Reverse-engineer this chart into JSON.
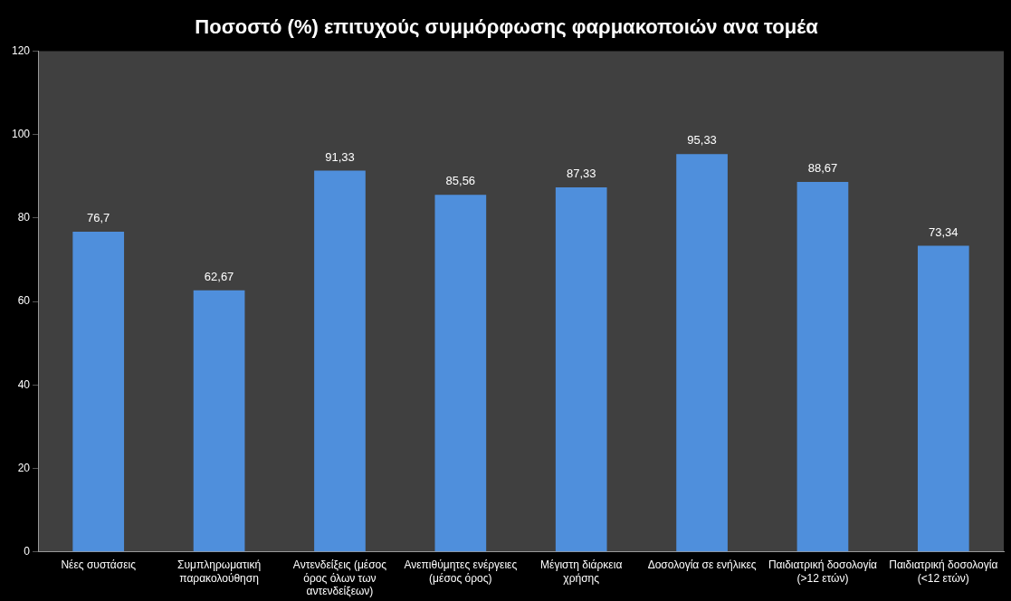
{
  "chart_data": {
    "type": "bar",
    "title": "Ποσοστό (%) επιτυχούς συμμόρφωσης φαρμακοποιών ανα τομέα",
    "categories": [
      "Νέες συστάσεις",
      "Συμπληρωματική παρακολούθηση",
      "Αντενδείξεις (μέσος όρος όλων των αντενδείξεων)",
      "Ανεπιθύμητες ενέργειες (μέσος όρος)",
      "Μέγιστη διάρκεια χρήσης",
      "Δοσολογία σε ενήλικες",
      "Παιδιατρική δοσολογία (>12 ετών)",
      "Παιδιατρική δοσολογία (<12 ετών)"
    ],
    "values": [
      76.7,
      62.67,
      91.33,
      85.56,
      87.33,
      95.33,
      88.67,
      73.34
    ],
    "value_labels": [
      "76,7",
      "62,67",
      "91,33",
      "85,56",
      "87,33",
      "95,33",
      "88,67",
      "73,34"
    ],
    "color": "#4f8fdc",
    "ylim": [
      0,
      120
    ],
    "yticks": [
      0,
      20,
      40,
      60,
      80,
      100,
      120
    ],
    "grid": false,
    "legend": false
  }
}
